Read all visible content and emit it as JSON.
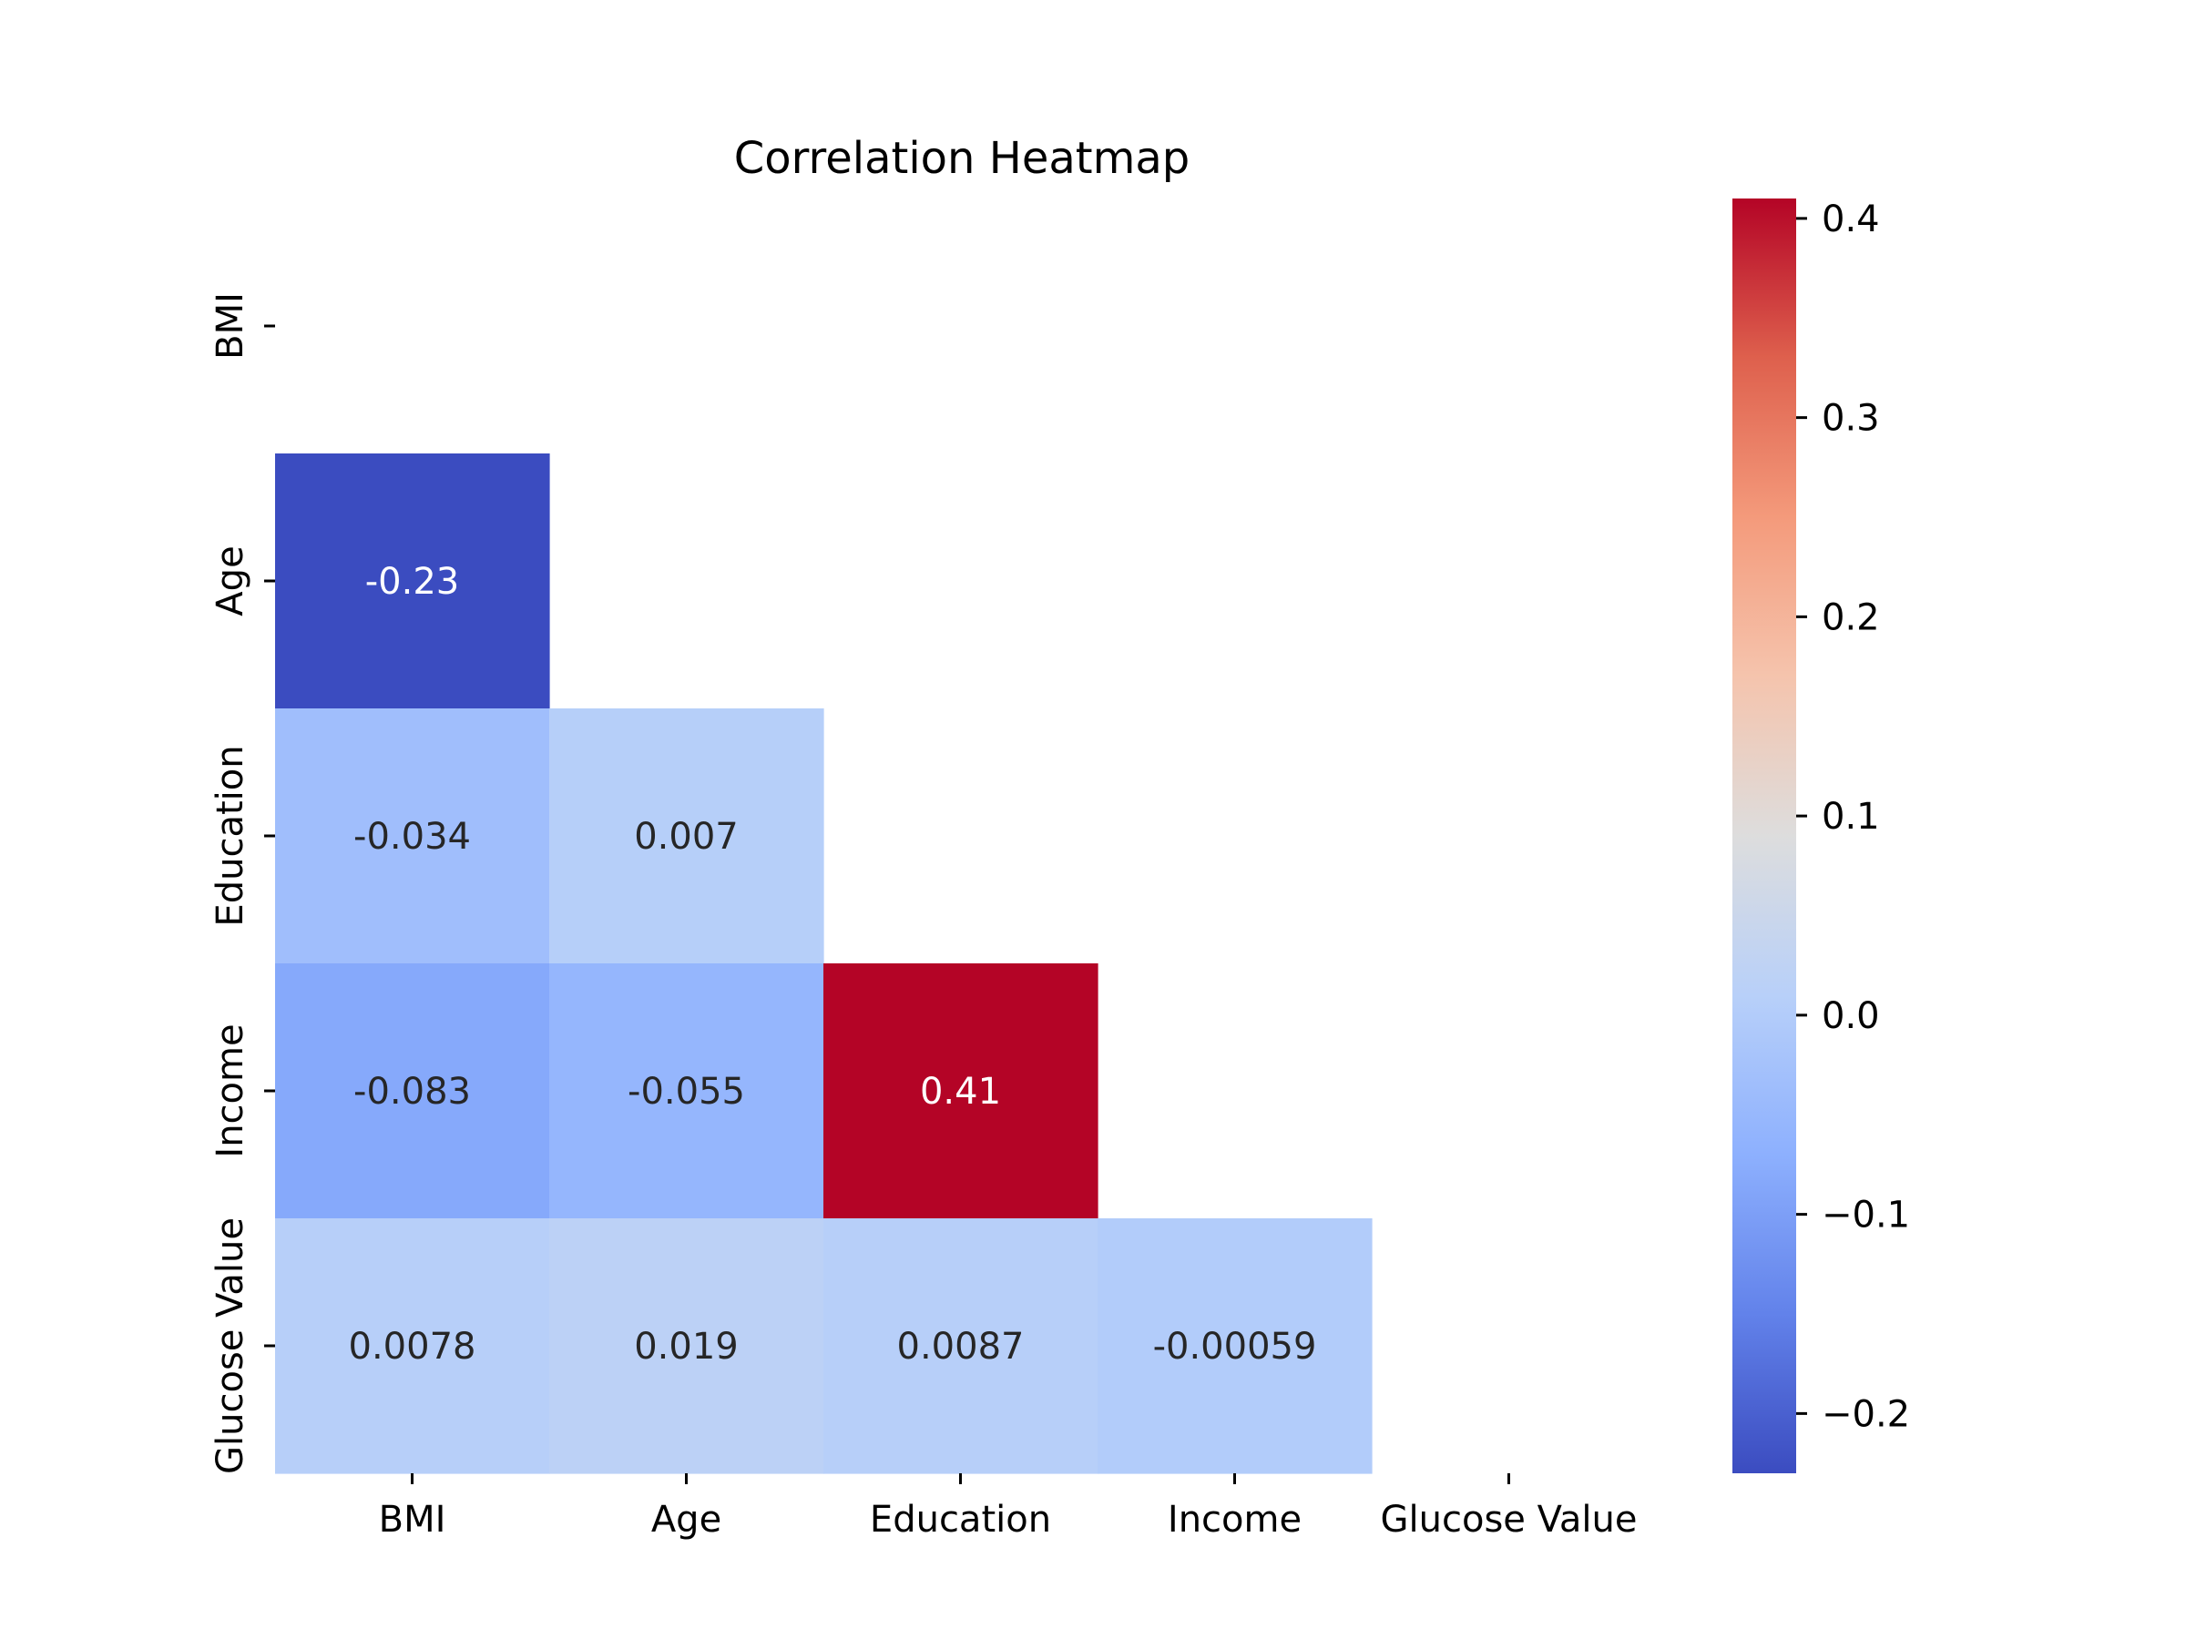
{
  "chart_data": {
    "type": "heatmap",
    "title": "Correlation Heatmap",
    "variables": [
      "BMI",
      "Age",
      "Education",
      "Income",
      "Glucose Value"
    ],
    "mask": "upper-triangle-including-diagonal",
    "cells": [
      {
        "row": "Age",
        "col": "BMI",
        "value": -0.23,
        "label": "-0.23"
      },
      {
        "row": "Education",
        "col": "BMI",
        "value": -0.034,
        "label": "-0.034"
      },
      {
        "row": "Education",
        "col": "Age",
        "value": 0.007,
        "label": "0.007"
      },
      {
        "row": "Income",
        "col": "BMI",
        "value": -0.083,
        "label": "-0.083"
      },
      {
        "row": "Income",
        "col": "Age",
        "value": -0.055,
        "label": "-0.055"
      },
      {
        "row": "Income",
        "col": "Education",
        "value": 0.41,
        "label": "0.41"
      },
      {
        "row": "Glucose Value",
        "col": "BMI",
        "value": 0.0078,
        "label": "0.0078"
      },
      {
        "row": "Glucose Value",
        "col": "Age",
        "value": 0.019,
        "label": "0.019"
      },
      {
        "row": "Glucose Value",
        "col": "Education",
        "value": 0.0087,
        "label": "0.0087"
      },
      {
        "row": "Glucose Value",
        "col": "Income",
        "value": -0.00059,
        "label": "-0.00059"
      }
    ],
    "colormap": "coolwarm",
    "colorbar": {
      "range": [
        -0.23,
        0.41
      ],
      "ticks": [
        {
          "value": 0.4,
          "label": "0.4"
        },
        {
          "value": 0.3,
          "label": "0.3"
        },
        {
          "value": 0.2,
          "label": "0.2"
        },
        {
          "value": 0.1,
          "label": "0.1"
        },
        {
          "value": 0.0,
          "label": "0.0"
        },
        {
          "value": -0.1,
          "label": "−0.1"
        },
        {
          "value": -0.2,
          "label": "−0.2"
        }
      ]
    },
    "colors": {
      "low": "#3b4cc0",
      "mid": "#dddddd",
      "high": "#b40426",
      "dark_text": "#262626",
      "light_text": "#ffffff"
    },
    "grid": false
  }
}
